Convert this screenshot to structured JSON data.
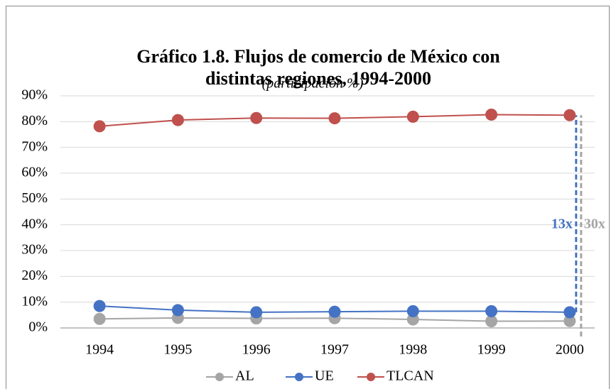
{
  "chart_data": {
    "type": "line",
    "title": [
      "Gráfico 1.8. Flujos de comercio de México con",
      "distintas regiones, 1994-2000"
    ],
    "subtitle": "(participación %)",
    "categories": [
      "1994",
      "1995",
      "1996",
      "1997",
      "1998",
      "1999",
      "2000"
    ],
    "series": [
      {
        "name": "AL",
        "color": "#a5a5a5",
        "values": [
          3.5,
          3.9,
          3.7,
          3.8,
          3.3,
          2.6,
          2.7
        ]
      },
      {
        "name": "UE",
        "color": "#4472c4",
        "values": [
          8.5,
          6.9,
          6.1,
          6.3,
          6.5,
          6.5,
          6.1
        ]
      },
      {
        "name": "TLCAN",
        "color": "#c0504d",
        "values": [
          78.2,
          80.6,
          81.4,
          81.3,
          81.9,
          82.7,
          82.5
        ]
      }
    ],
    "ylim": [
      0,
      90
    ],
    "yticks": [
      {
        "value": 0,
        "label": "0%"
      },
      {
        "value": 10,
        "label": "10%"
      },
      {
        "value": 20,
        "label": "20%"
      },
      {
        "value": 30,
        "label": "30%"
      },
      {
        "value": 40,
        "label": "40%"
      },
      {
        "value": 50,
        "label": "50%"
      },
      {
        "value": 60,
        "label": "60%"
      },
      {
        "value": 70,
        "label": "70%"
      },
      {
        "value": 80,
        "label": "80%"
      },
      {
        "value": 90,
        "label": "90%"
      }
    ],
    "grid": true,
    "legend": "bottom",
    "annotations": [
      {
        "text": "13x",
        "color": "#4472c4"
      },
      {
        "text": "30x",
        "color": "#a5a5a5"
      }
    ]
  }
}
